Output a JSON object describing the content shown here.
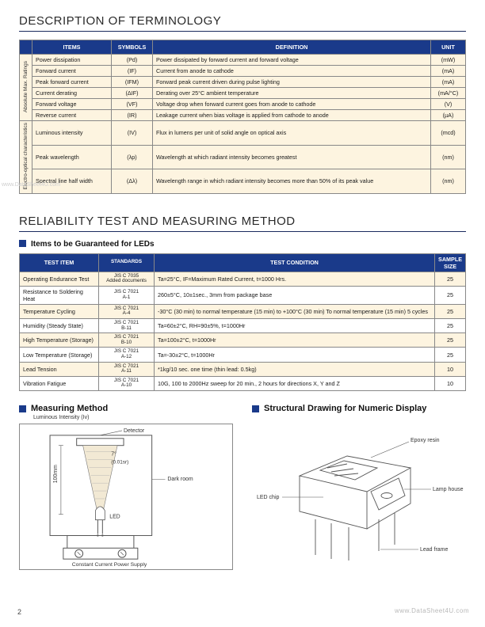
{
  "section1_title": "DESCRIPTION OF TERMINOLOGY",
  "t1": {
    "headers": {
      "items": "ITEMS",
      "symbols": "SYMBOLS",
      "definition": "DEFINITION",
      "unit": "UNIT"
    },
    "group1_label": "Absolute Max. Ratings",
    "group2_label": "Electro-optical characteristics",
    "rows": [
      {
        "item": "Power dissipation",
        "sym": "(Pd)",
        "def": "Power dissipated by forward current and forward voltage",
        "unit": "(mW)"
      },
      {
        "item": "Forward current",
        "sym": "(IF)",
        "def": "Current from anode to cathode",
        "unit": "(mA)"
      },
      {
        "item": "Peak forward current",
        "sym": "(IFM)",
        "def": "Forward peak current driven during pulse lighting",
        "unit": "(mA)"
      },
      {
        "item": "Current derating",
        "sym": "(ΔIF)",
        "def": "Derating over 25°C ambient temperature",
        "unit": "(mA/°C)"
      },
      {
        "item": "Forward voltage",
        "sym": "(VF)",
        "def": "Voltage drop when forward current goes from anode to cathode",
        "unit": "(V)"
      },
      {
        "item": "Reverse current",
        "sym": "(IR)",
        "def": "Leakage current when bias voltage is applied from cathode to anode",
        "unit": "(µA)"
      },
      {
        "item": "Luminous intensity",
        "sym": "(IV)",
        "def": "Flux in lumens per unit of solid angle on optical axis",
        "unit": "(mcd)"
      },
      {
        "item": "Peak wavelength",
        "sym": "(λp)",
        "def": "Wavelength at which radiant intensity becomes greatest",
        "unit": "(nm)"
      },
      {
        "item": "Spectral line half width",
        "sym": "(Δλ)",
        "def": "Wavelength range in which radiant intensity becomes more than 50% of its peak value",
        "unit": "(nm)"
      }
    ]
  },
  "section2_title": "RELIABILITY TEST AND MEASURING METHOD",
  "section2_sub": "Items to be Guaranteed for LEDs",
  "t2": {
    "headers": {
      "test": "TEST ITEM",
      "std": "STANDARDS",
      "cond": "TEST CONDITION",
      "samp": "SAMPLE SIZE"
    },
    "rows": [
      {
        "test": "Operating Endurance Test",
        "std": "JIS C 7035\nAdded documents",
        "cond": "Ta=25°C, IF=Maximum Rated Current, t=1000 Hrs.",
        "samp": "25"
      },
      {
        "test": "Resistance to Soldering Heat",
        "std": "JIS C 7021\nA-1",
        "cond": "260±5°C, 10±1sec., 3mm from package base",
        "samp": "25"
      },
      {
        "test": "Temperature Cycling",
        "std": "JIS C 7021\nA-4",
        "cond": "-30°C (30 min) to normal temperature (15 min) to +100°C (30 min) To normal temperature (15 min) 5 cycles",
        "samp": "25"
      },
      {
        "test": "Humidity (Steady State)",
        "std": "JIS C 7021\nB-11",
        "cond": "Ta=60±2°C, RH=90±5%, t=1000Hr",
        "samp": "25"
      },
      {
        "test": "High Temperature (Storage)",
        "std": "JIS C 7021\nB-10",
        "cond": "Ta=100±2°C, t=1000Hr",
        "samp": "25"
      },
      {
        "test": "Low Temperature (Storage)",
        "std": "JIS C 7021\nA-12",
        "cond": "Ta=-30±2°C, t=1000Hr",
        "samp": "25"
      },
      {
        "test": "Lead Tension",
        "std": "JIS C 7021\nA-11",
        "cond": "*1kg/10 sec. one time (thin lead: 0.5kg)",
        "samp": "10"
      },
      {
        "test": "Vibration Fatigue",
        "std": "JIS C 7021\nA-10",
        "cond": "10G, 100 to 2000Hz sweep for 20 min., 2 hours for directions X, Y and Z",
        "samp": "10"
      }
    ]
  },
  "diag": {
    "measuring_title": "Measuring Method",
    "measuring_sub": "Luminous Intensity (Iv)",
    "struct_title": "Structural Drawing for Numeric Display",
    "labels": {
      "detector": "Detector",
      "angle": "7°",
      "sr": "(0.01sr)",
      "len": "100mm",
      "dark": "Dark room",
      "led": "LED",
      "power": "Constant Current Power Supply",
      "epoxy": "Epoxy resin",
      "chip": "LED chip",
      "lamp": "Lamp house",
      "lead": "Lead frame"
    }
  },
  "watermark1": "www.DataSheet4U.com",
  "watermark2": "www.DataSheet4U.com",
  "page_num": "2",
  "colors": {
    "header_bg": "#1a3a8a",
    "row_bg": "#fdf4e0",
    "border": "#888888",
    "rule": "#1a2a5e"
  }
}
